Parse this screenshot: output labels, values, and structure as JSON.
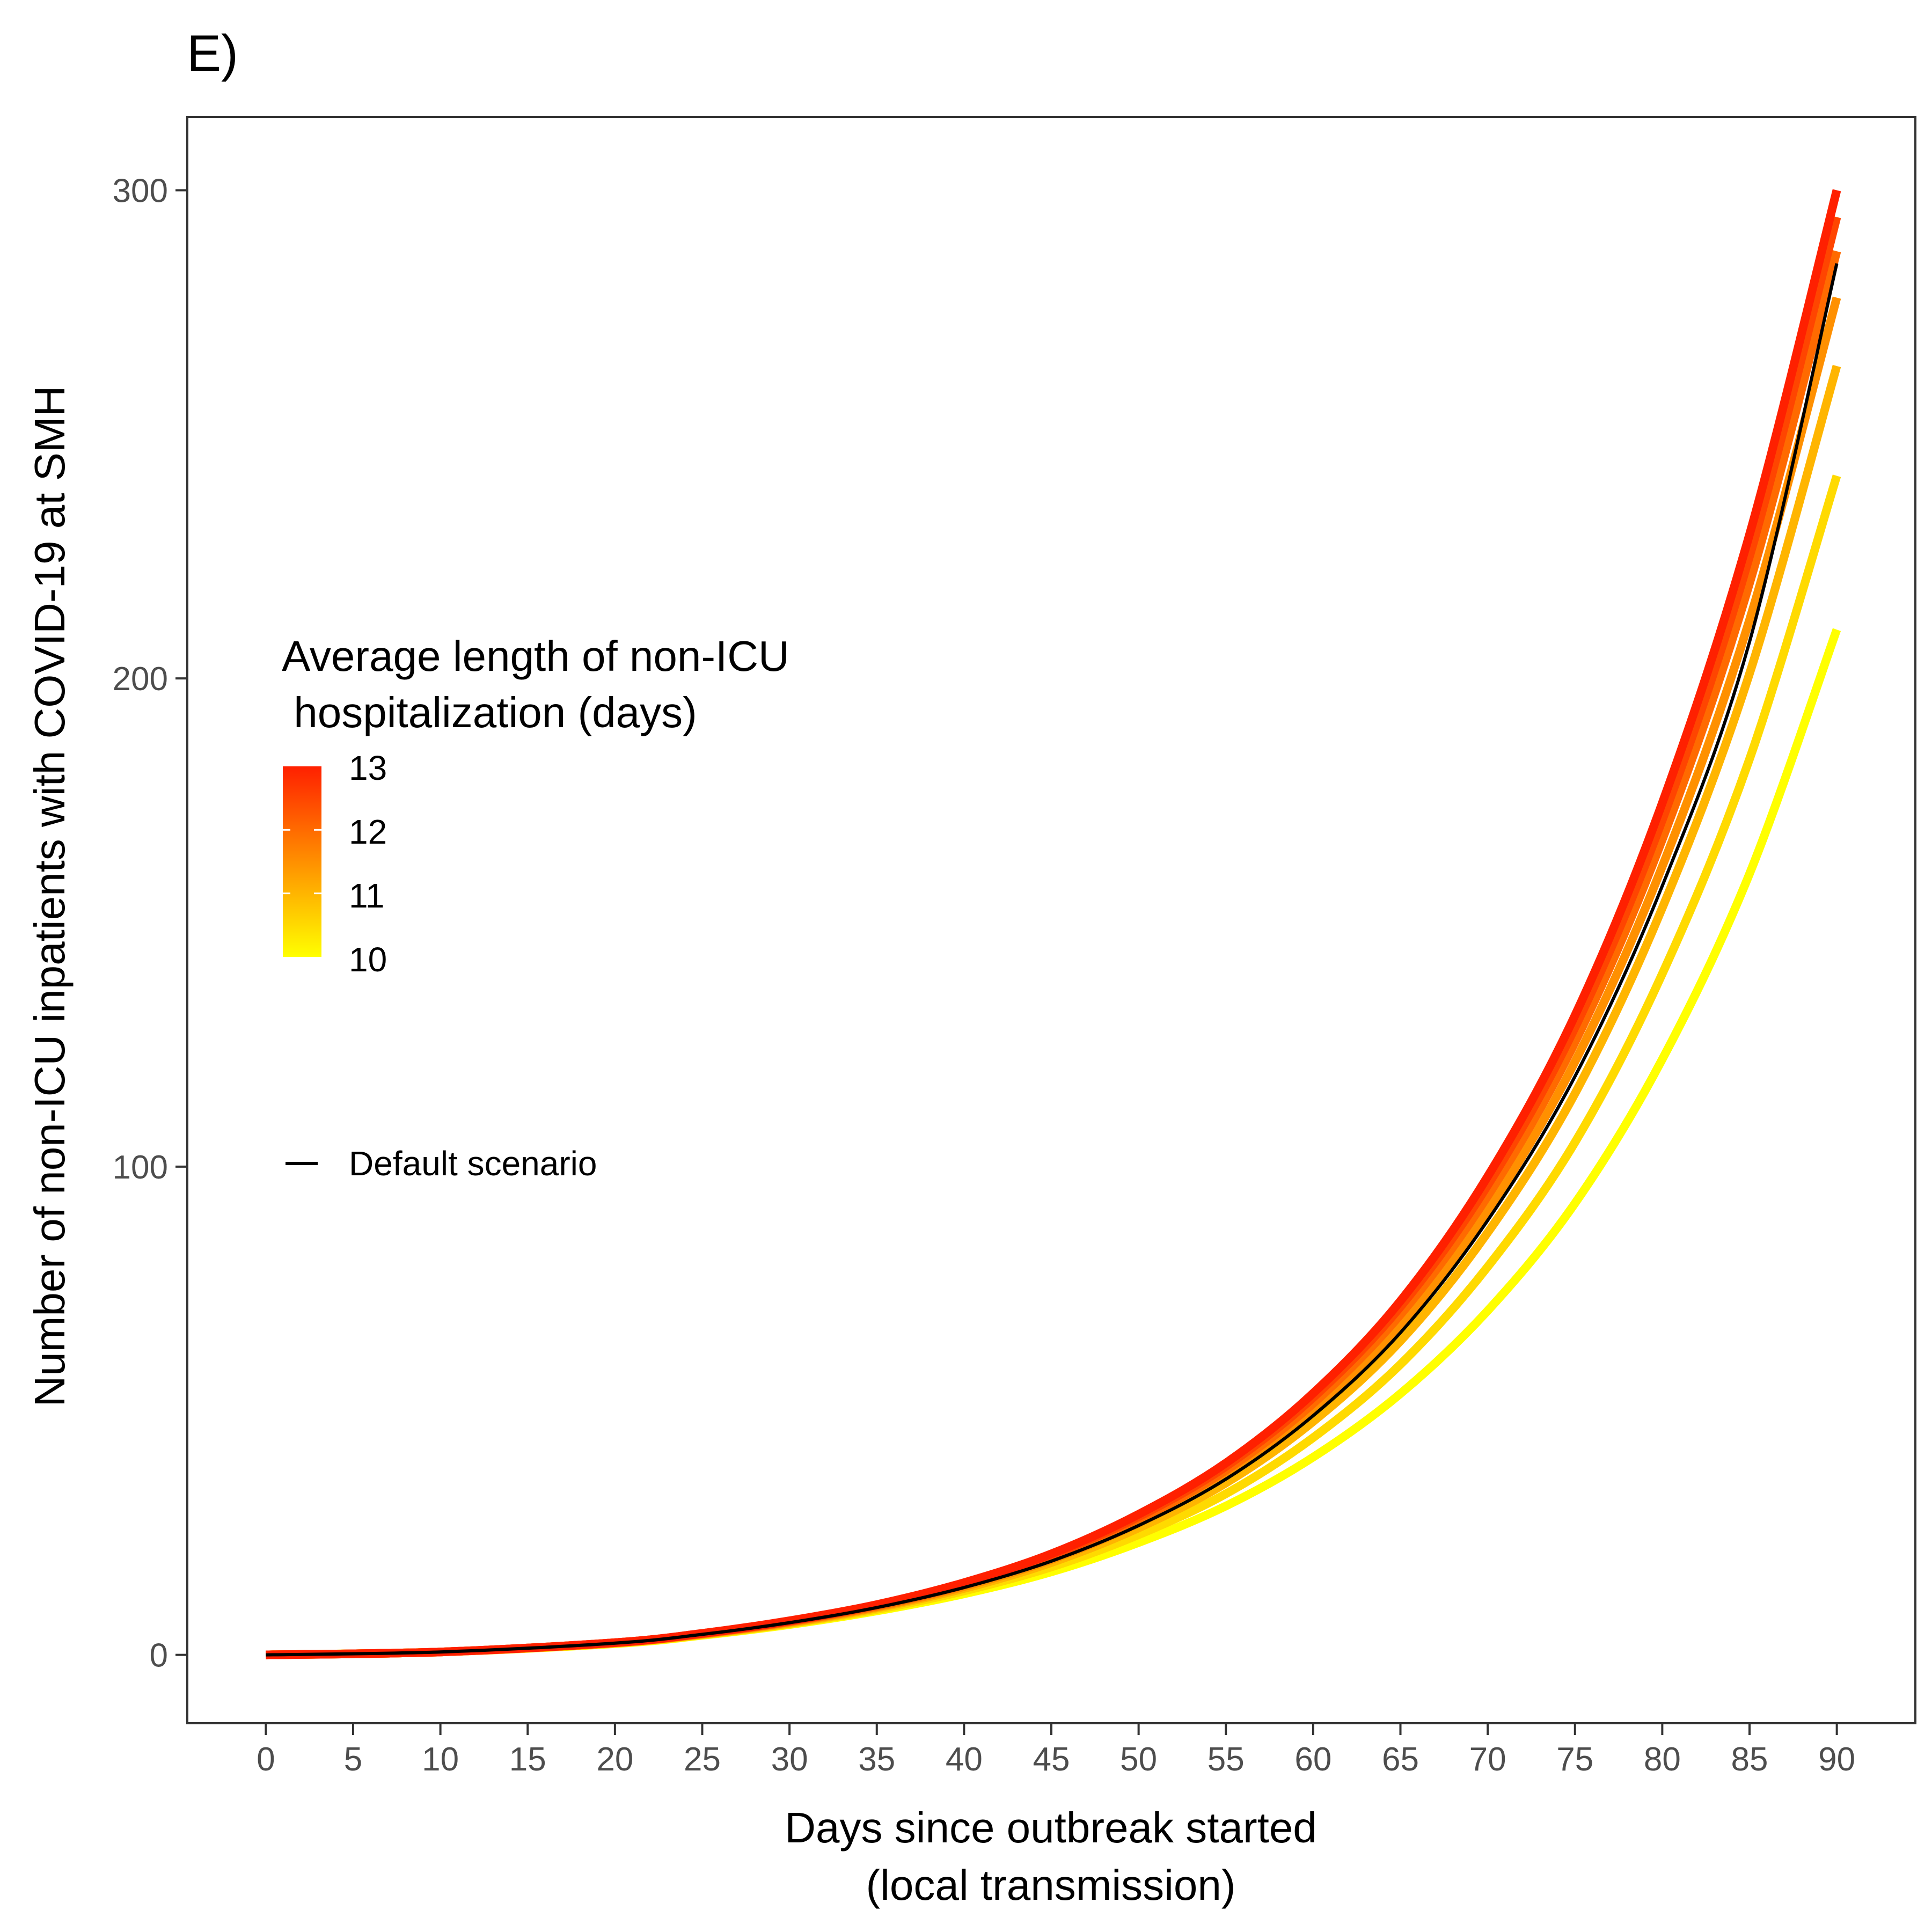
{
  "panel_tag": "E)",
  "colors": {
    "low": "#ffff00",
    "high": "#ff2000",
    "default_line": "#000000",
    "axis": "#333333",
    "tick_text": "#4d4d4d"
  },
  "chart_data": {
    "type": "line",
    "title": "E)",
    "xlabel_lines": [
      "Days since outbreak started",
      "(local transmission)"
    ],
    "ylabel": "Number of non-ICU inpatients with COVID-19 at SMH",
    "xlim": [
      -4.5,
      94.5
    ],
    "ylim": [
      -14,
      315
    ],
    "x_ticks": [
      0,
      5,
      10,
      15,
      20,
      25,
      30,
      35,
      40,
      45,
      50,
      55,
      60,
      65,
      70,
      75,
      80,
      85,
      90
    ],
    "y_ticks": [
      0,
      100,
      200,
      300
    ],
    "x": [
      0,
      10,
      20,
      25,
      30,
      35,
      40,
      45,
      50,
      55,
      60,
      65,
      70,
      75,
      80,
      85,
      90
    ],
    "series": [
      {
        "length_days": 10,
        "values": [
          0,
          0.6,
          2.3,
          4.0,
          6.2,
          9.0,
          12.5,
          17.0,
          23.0,
          30.5,
          40.5,
          53.5,
          70.5,
          92.5,
          122.0,
          160.0,
          210.0
        ]
      },
      {
        "length_days": 10.5,
        "values": [
          0,
          0.6,
          2.4,
          4.1,
          6.4,
          9.3,
          13.1,
          18.0,
          24.6,
          33.0,
          44.5,
          59.5,
          79.5,
          105.0,
          139.5,
          183.5,
          241.5
        ]
      },
      {
        "length_days": 11,
        "values": [
          0,
          0.6,
          2.4,
          4.2,
          6.5,
          9.6,
          13.6,
          18.9,
          26.0,
          35.2,
          47.8,
          64.3,
          86.5,
          115.0,
          153.0,
          201.0,
          264.0
        ]
      },
      {
        "length_days": 11.5,
        "values": [
          0,
          0.6,
          2.5,
          4.3,
          6.7,
          9.8,
          14.0,
          19.5,
          27.0,
          36.7,
          50.0,
          67.5,
          91.0,
          121.5,
          161.5,
          212.0,
          278.0
        ]
      },
      {
        "length_days": 12,
        "values": [
          0,
          0.6,
          2.5,
          4.3,
          6.8,
          10.0,
          14.3,
          20.0,
          27.7,
          37.8,
          51.5,
          69.7,
          94.0,
          125.5,
          167.0,
          219.5,
          287.5
        ]
      },
      {
        "length_days": 12.5,
        "values": [
          0,
          0.6,
          2.5,
          4.4,
          6.9,
          10.2,
          14.6,
          20.4,
          28.3,
          38.6,
          52.7,
          71.3,
          96.2,
          128.5,
          171.0,
          225.0,
          294.5
        ]
      },
      {
        "length_days": 13,
        "values": [
          0,
          0.6,
          2.5,
          4.4,
          7.0,
          10.3,
          14.8,
          20.7,
          28.8,
          39.3,
          53.6,
          72.5,
          98.0,
          131.0,
          174.5,
          229.5,
          300.0
        ]
      }
    ],
    "default_scenario": {
      "name": "Default scenario",
      "values": [
        0,
        0.6,
        2.4,
        4.2,
        6.6,
        9.7,
        13.8,
        19.2,
        26.5,
        36.0,
        49.0,
        66.0,
        89.0,
        118.5,
        157.5,
        207.5,
        285.0
      ]
    },
    "legend": {
      "title_lines": [
        "Average length of non-ICU",
        " hospitalization (days)"
      ],
      "colorbar_range": [
        10,
        13
      ],
      "colorbar_labels": [
        "13",
        "12",
        "11",
        "10"
      ],
      "position": "left-middle"
    },
    "grid": false
  }
}
